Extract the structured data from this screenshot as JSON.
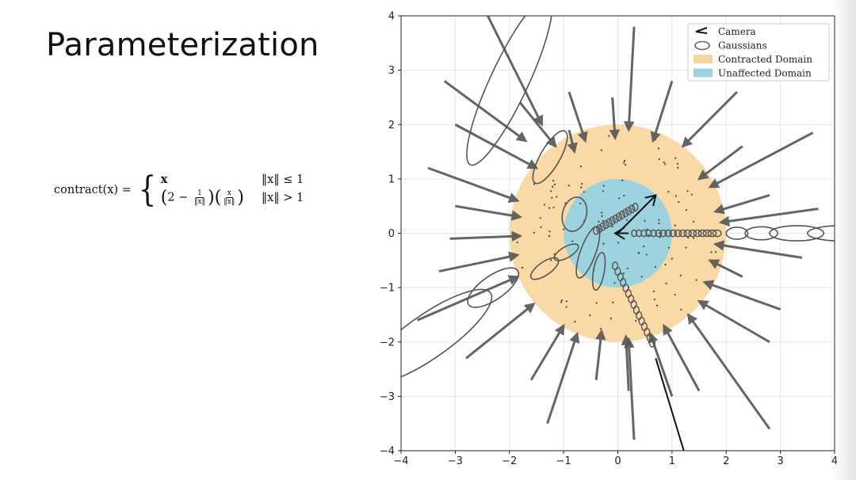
{
  "slide": {
    "title": "Parameterization"
  },
  "formula": {
    "lhs": "contract(x) =",
    "case1_value": "x",
    "case1_condition": "‖x‖ ≤ 1",
    "case2_prefix": "2 −",
    "case2_frac1_num": "1",
    "case2_frac1_den": "‖x‖",
    "case2_frac2_num": "x",
    "case2_frac2_den": "‖x‖",
    "case2_condition": "‖x‖ > 1"
  },
  "chart_data": {
    "type": "diagram",
    "xlim": [
      -4,
      4
    ],
    "ylim": [
      -4,
      4
    ],
    "xticks": [
      -4,
      -3,
      -2,
      -1,
      0,
      1,
      2,
      3,
      4
    ],
    "yticks": [
      -4,
      -3,
      -2,
      -1,
      0,
      1,
      2,
      3,
      4
    ],
    "xtick_labels": [
      "−4",
      "−3",
      "−2",
      "−1",
      "0",
      "1",
      "2",
      "3",
      "4"
    ],
    "ytick_labels": [
      "−4",
      "−3",
      "−2",
      "−1",
      "0",
      "1",
      "2",
      "3",
      "4"
    ],
    "grid": true,
    "legend_position": "top-right",
    "legend": [
      {
        "label": "Camera",
        "kind": "camera",
        "color": "#111111"
      },
      {
        "label": "Gaussians",
        "kind": "ellipse",
        "color": "#666666"
      },
      {
        "label": "Contracted Domain",
        "kind": "patch",
        "color": "#f8d59c"
      },
      {
        "label": "Unaffected Domain",
        "kind": "patch",
        "color": "#9dd3de"
      }
    ],
    "contracted_radius": 2,
    "unaffected_radius": 1,
    "colors": {
      "contracted": "#f8d59c",
      "unaffected": "#9dd3de",
      "arrow": "#555555",
      "ellipse": "#555555",
      "camera": "#111111",
      "dot": "#444444"
    },
    "arrows": [
      [
        -2.5,
        4.2,
        -1.4,
        2.0
      ],
      [
        -3.2,
        2.8,
        -1.7,
        1.7
      ],
      [
        -1.8,
        2.4,
        -1.15,
        1.6
      ],
      [
        -3.5,
        1.2,
        -1.85,
        0.6
      ],
      [
        -3.0,
        0.5,
        -1.8,
        0.3
      ],
      [
        -3.1,
        -0.1,
        -1.8,
        -0.05
      ],
      [
        -3.3,
        -0.7,
        -1.85,
        -0.4
      ],
      [
        -3.7,
        -1.6,
        -1.85,
        -0.8
      ],
      [
        -2.8,
        -2.3,
        -1.55,
        -1.3
      ],
      [
        -1.6,
        -2.7,
        -1.0,
        -1.7
      ],
      [
        -1.3,
        -3.5,
        -0.75,
        -1.85
      ],
      [
        -0.4,
        -2.7,
        -0.3,
        -1.8
      ],
      [
        0.2,
        -2.9,
        0.15,
        -1.9
      ],
      [
        0.3,
        -3.8,
        0.2,
        -1.95
      ],
      [
        1.0,
        -3.0,
        0.6,
        -1.85
      ],
      [
        1.5,
        -2.9,
        0.85,
        -1.7
      ],
      [
        2.8,
        -3.6,
        1.3,
        -1.5
      ],
      [
        2.8,
        -2.0,
        1.5,
        -1.25
      ],
      [
        3.0,
        -1.4,
        1.6,
        -0.9
      ],
      [
        2.3,
        -0.8,
        1.7,
        -0.5
      ],
      [
        3.4,
        -0.45,
        1.8,
        -0.2
      ],
      [
        3.7,
        0.45,
        1.9,
        0.2
      ],
      [
        2.8,
        0.7,
        1.8,
        0.4
      ],
      [
        3.6,
        1.85,
        1.7,
        0.85
      ],
      [
        2.3,
        1.6,
        1.5,
        1.0
      ],
      [
        2.2,
        2.6,
        1.2,
        1.6
      ],
      [
        1.0,
        2.8,
        0.65,
        1.7
      ],
      [
        0.3,
        3.8,
        0.2,
        1.9
      ],
      [
        -0.1,
        2.5,
        -0.05,
        1.75
      ],
      [
        -0.9,
        2.6,
        -0.6,
        1.7
      ],
      [
        -0.9,
        1.9,
        -0.8,
        1.5
      ],
      [
        -3.0,
        2.0,
        -1.5,
        1.2
      ]
    ],
    "cameras": [
      {
        "x": 0.0,
        "y": 0.0,
        "dx": 0.7,
        "dy": 0.7
      },
      {
        "x": 0.2,
        "y": 0.0,
        "dx": -0.25,
        "dy": 0.0
      },
      {
        "x": 0.7,
        "y": -2.3,
        "dx": 0.7,
        "dy": -2.3
      }
    ]
  }
}
